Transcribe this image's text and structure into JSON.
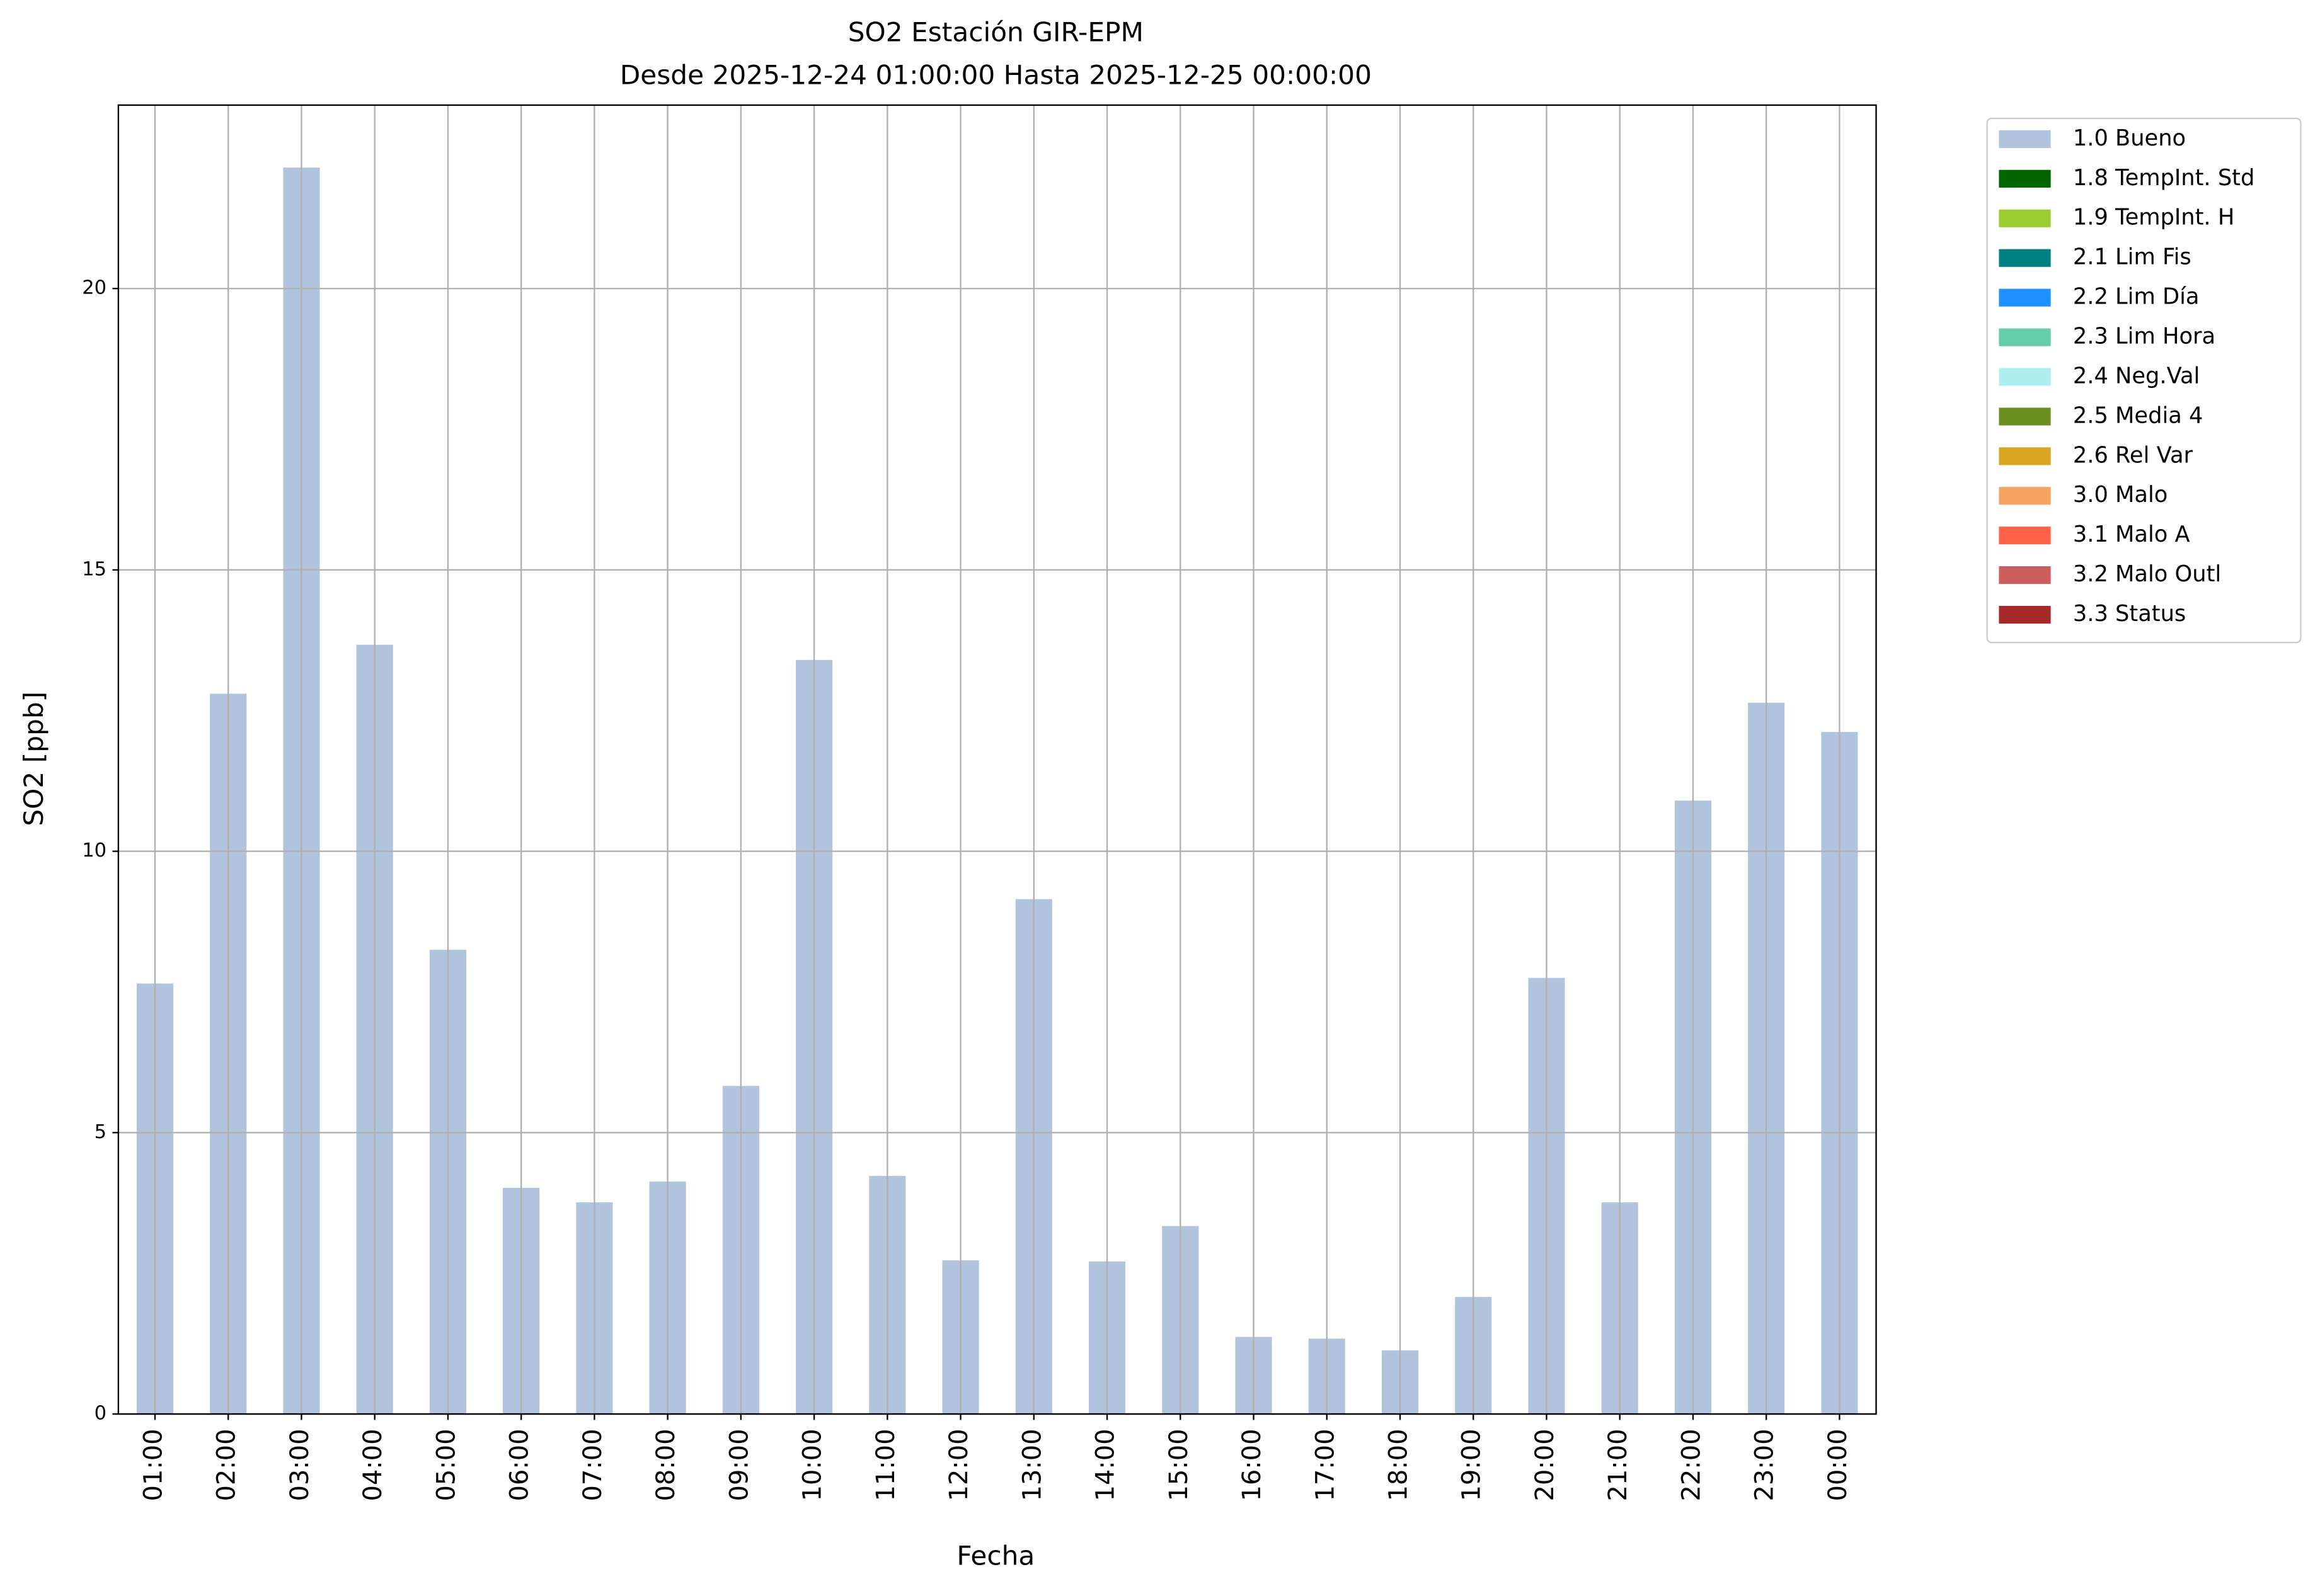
{
  "chart_data": {
    "type": "bar",
    "title": "SO2 Estación GIR-EPM",
    "subtitle": "Desde 2025-12-24 01:00:00 Hasta 2025-12-25 00:00:00",
    "x_label": "Fecha",
    "y_label": "SO2 [ppb]",
    "categories": [
      "01:00",
      "02:00",
      "03:00",
      "04:00",
      "05:00",
      "06:00",
      "07:00",
      "08:00",
      "09:00",
      "10:00",
      "11:00",
      "12:00",
      "13:00",
      "14:00",
      "15:00",
      "16:00",
      "17:00",
      "18:00",
      "19:00",
      "20:00",
      "21:00",
      "22:00",
      "23:00",
      "00:00"
    ],
    "series": [
      {
        "name": "1.0 Bueno",
        "color": "#b0c4de",
        "values": [
          7.65,
          12.8,
          22.15,
          13.67,
          8.25,
          4.02,
          3.76,
          4.13,
          5.83,
          13.4,
          4.23,
          2.73,
          9.15,
          2.71,
          3.34,
          1.37,
          1.34,
          1.13,
          2.08,
          7.75,
          3.76,
          10.9,
          12.64,
          12.12
        ]
      },
      {
        "name": "1.8 TempInt. Std",
        "color": "#006400"
      },
      {
        "name": "1.9 TempInt. H",
        "color": "#9acd32"
      },
      {
        "name": "2.1 Lim Fis",
        "color": "#008080"
      },
      {
        "name": "2.2 Lim Día",
        "color": "#1e90ff"
      },
      {
        "name": "2.3 Lim Hora",
        "color": "#66cdaa"
      },
      {
        "name": "2.4 Neg.Val",
        "color": "#afeeee"
      },
      {
        "name": "2.5 Media 4",
        "color": "#6b8e23"
      },
      {
        "name": "2.6 Rel Var",
        "color": "#daa520"
      },
      {
        "name": "3.0 Malo",
        "color": "#f4a460"
      },
      {
        "name": "3.1 Malo A",
        "color": "#ff6347"
      },
      {
        "name": "3.2 Malo Outl",
        "color": "#cd5c5c"
      },
      {
        "name": "3.3 Status",
        "color": "#a52a2a"
      }
    ],
    "ylim": [
      0,
      23.26
    ],
    "yticks": [
      0,
      5,
      10,
      15,
      20
    ],
    "grid": true,
    "legend": "outside-upper-right"
  }
}
